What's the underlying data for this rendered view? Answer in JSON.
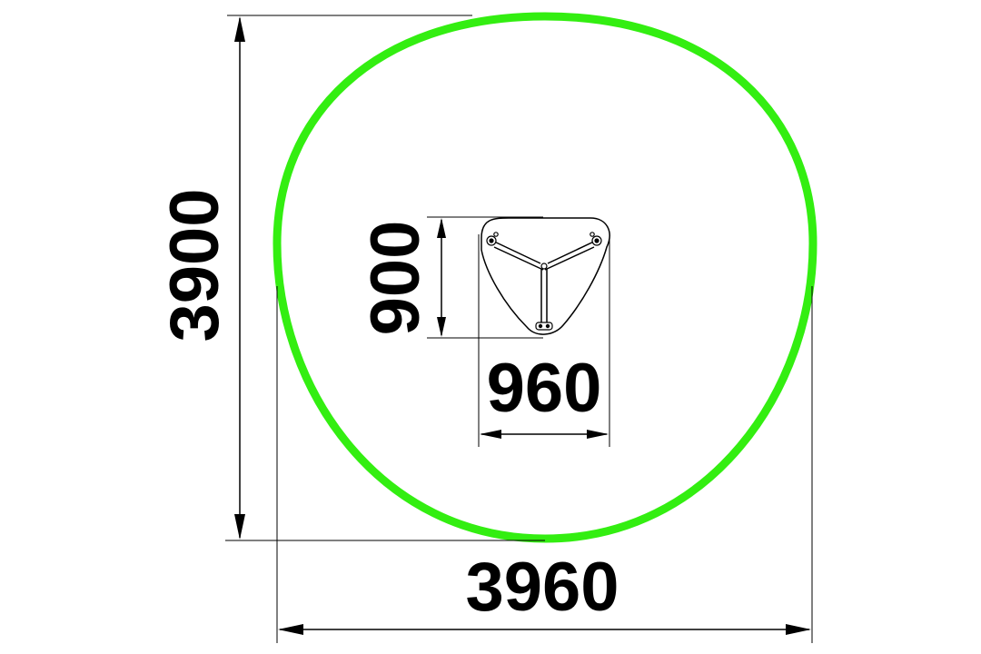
{
  "drawing": {
    "safety_zone": {
      "color": "#33ee11"
    },
    "dimensions": {
      "overall_height": "3900",
      "overall_width": "3960",
      "equipment_height": "900",
      "equipment_width": "960"
    },
    "line_color": "#000000"
  }
}
